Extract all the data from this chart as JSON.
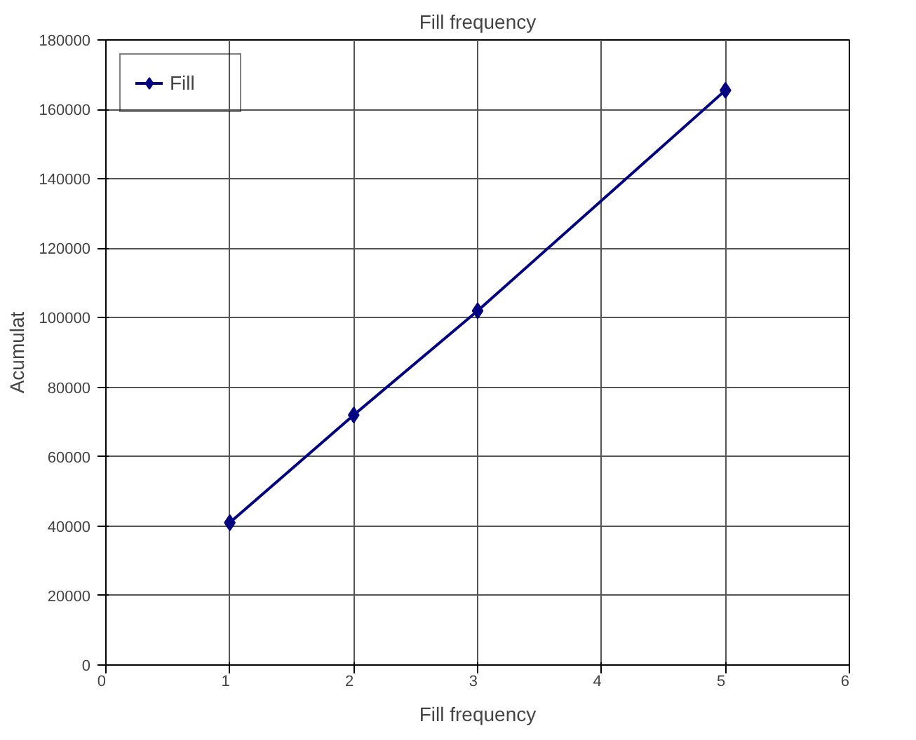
{
  "chart_data": {
    "type": "line",
    "title": "Fill frequency",
    "xlabel": "Fill frequency",
    "ylabel": "Acumulat",
    "x": [
      1,
      2,
      3,
      5
    ],
    "series": [
      {
        "name": "Fill",
        "color": "#000080",
        "values": [
          41000,
          72000,
          102000,
          165500
        ]
      }
    ],
    "xlim": [
      0,
      6
    ],
    "xticks": [
      0,
      1,
      2,
      3,
      4,
      5,
      6
    ],
    "ylim": [
      0,
      180000
    ],
    "yticks": [
      0,
      20000,
      40000,
      60000,
      80000,
      100000,
      120000,
      140000,
      160000,
      180000
    ],
    "grid": true,
    "legend": "top left",
    "marker": "diamond",
    "line_style": "solid"
  }
}
